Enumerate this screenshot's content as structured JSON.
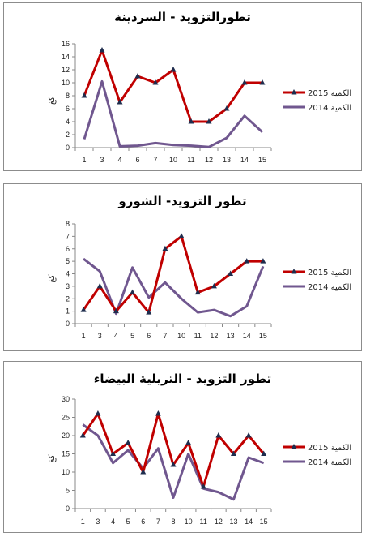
{
  "chart_data": [
    {
      "type": "line",
      "title": "تطورالتزويد - السردينة",
      "ylabel": "كغ",
      "categories": [
        "1",
        "3",
        "4",
        "6",
        "7",
        "10",
        "11",
        "12",
        "13",
        "14",
        "15"
      ],
      "ylim": [
        0,
        16
      ],
      "yticks": [
        0,
        2,
        4,
        6,
        8,
        10,
        12,
        14,
        16
      ],
      "series": [
        {
          "name": "الكمية 2015",
          "color": "#c00000",
          "marker": "triangle",
          "values": [
            8,
            15,
            7,
            11,
            10,
            12,
            4,
            4,
            6,
            10,
            10
          ]
        },
        {
          "name": "الكمية 2014",
          "color": "#70578f",
          "marker": "none",
          "values": [
            1.3,
            10.2,
            0.2,
            0.3,
            0.7,
            0.4,
            0.3,
            0.1,
            1.5,
            4.9,
            2.4
          ]
        }
      ]
    },
    {
      "type": "line",
      "title": "تطور التزويد- الشورو",
      "ylabel": "كغ",
      "categories": [
        "1",
        "3",
        "4",
        "5",
        "6",
        "7",
        "10",
        "11",
        "12",
        "13",
        "14",
        "15"
      ],
      "ylim": [
        0,
        8
      ],
      "yticks": [
        0,
        1,
        2,
        3,
        4,
        5,
        6,
        7,
        8
      ],
      "series": [
        {
          "name": "الكمية 2015",
          "color": "#c00000",
          "marker": "triangle",
          "values": [
            1.1,
            3,
            1,
            2.5,
            0.9,
            6,
            7,
            2.5,
            3,
            4,
            5,
            5
          ]
        },
        {
          "name": "الكمية 2014",
          "color": "#70578f",
          "marker": "none",
          "values": [
            5.2,
            4.2,
            0.8,
            4.5,
            2.1,
            3.3,
            2,
            0.9,
            1.1,
            0.6,
            1.4,
            4.6
          ]
        }
      ]
    },
    {
      "type": "line",
      "title": "تطور التزويد - التريلية البيضاء",
      "ylabel": "كغ",
      "categories": [
        "1",
        "3",
        "4",
        "5",
        "6",
        "7",
        "8",
        "10",
        "11",
        "12",
        "13",
        "14",
        "15"
      ],
      "ylim": [
        0,
        30
      ],
      "yticks": [
        0,
        5,
        10,
        15,
        20,
        25,
        30
      ],
      "series": [
        {
          "name": "الكمية 2015",
          "color": "#c00000",
          "marker": "triangle",
          "values": [
            20,
            26,
            15,
            18,
            10,
            26,
            12,
            18,
            6,
            20,
            15,
            20,
            15
          ]
        },
        {
          "name": "الكمية 2014",
          "color": "#70578f",
          "marker": "none",
          "values": [
            23,
            20,
            12.5,
            16,
            11,
            16.5,
            3,
            15,
            5.5,
            4.5,
            2.5,
            14,
            12.5
          ]
        }
      ]
    }
  ]
}
